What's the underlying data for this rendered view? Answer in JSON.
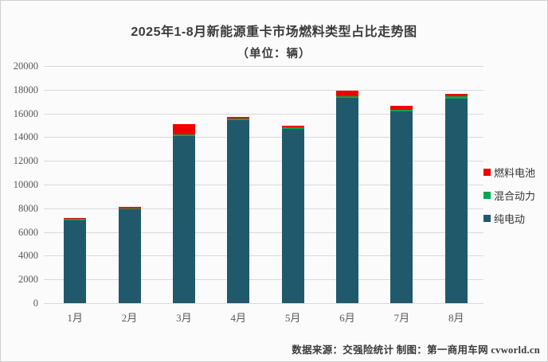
{
  "header": {
    "title": "2025年1-8月新能源重卡市场燃料类型占比走势图",
    "subtitle": "（单位：辆）"
  },
  "legend": {
    "items": [
      {
        "label": "燃料电池",
        "color": "#f20000"
      },
      {
        "label": "混合动力",
        "color": "#00a651"
      },
      {
        "label": "纯电动",
        "color": "#20596b"
      }
    ]
  },
  "footer": {
    "credit": "数据来源：交强险统计  制图：第一商用车网 cvworld.cn"
  },
  "chart_data": {
    "type": "bar",
    "stacked": true,
    "title": "2025年1-8月新能源重卡市场燃料类型占比走势图",
    "subtitle": "（单位：辆）",
    "categories": [
      "1月",
      "2月",
      "3月",
      "4月",
      "5月",
      "6月",
      "7月",
      "8月"
    ],
    "series": [
      {
        "name": "纯电动",
        "color": "#20596b",
        "values": [
          7000,
          7920,
          14100,
          15450,
          14720,
          17350,
          16150,
          17270
        ]
      },
      {
        "name": "混合动力",
        "color": "#00a651",
        "values": [
          30,
          100,
          130,
          130,
          130,
          70,
          180,
          180
        ]
      },
      {
        "name": "燃料电池",
        "color": "#f20000",
        "values": [
          70,
          130,
          870,
          150,
          150,
          480,
          290,
          175
        ]
      }
    ],
    "totals": [
      7100,
      8150,
      15100,
      15730,
      15000,
      17900,
      16620,
      17625
    ],
    "xlabel": "",
    "ylabel": "",
    "ylim": [
      0,
      20000
    ],
    "y_tick_step": 2000,
    "grid": true,
    "legend_position": "right"
  }
}
